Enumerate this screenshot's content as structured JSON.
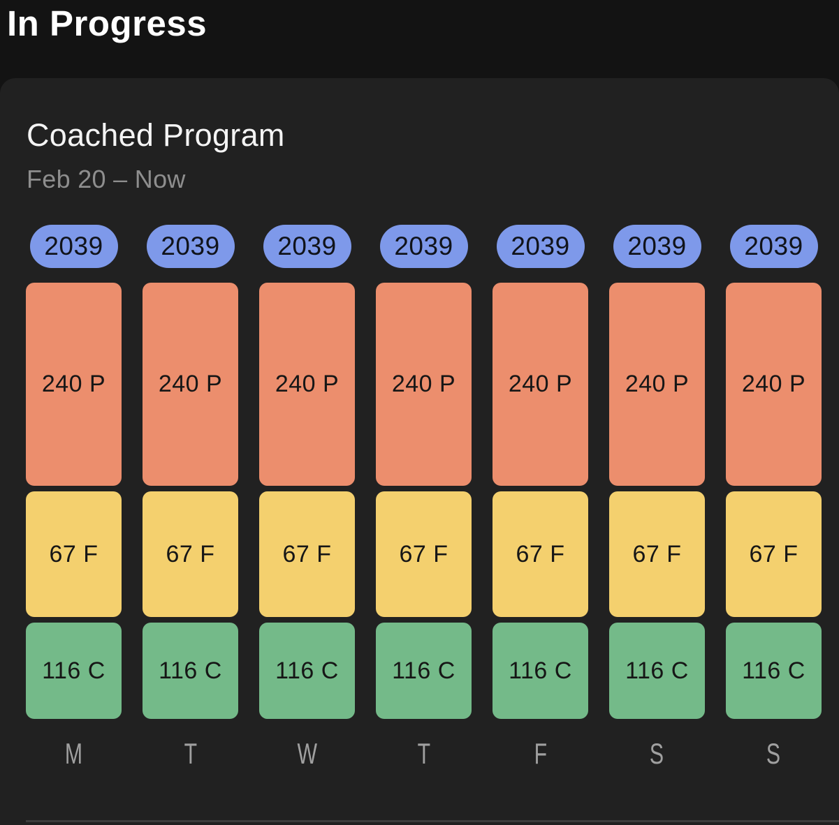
{
  "page": {
    "title": "In Progress",
    "background_color": "#131313"
  },
  "card": {
    "title": "Coached Program",
    "date_range": "Feb 20 – Now",
    "background_color": "#212121"
  },
  "colors": {
    "calories_badge": "#7e99ea",
    "protein_block": "#ec8e6d",
    "fat_block": "#f4d06e",
    "carb_block": "#74ba89",
    "divider": "#3d3d3d",
    "day_label": "#a0a0a0"
  },
  "chart_data": {
    "type": "bar",
    "title": "Coached Program",
    "subtitle": "Feb 20 – Now",
    "description": "Stacked daily macro target columns; one column per weekday, calorie total badge above each stack",
    "legend_position": "none",
    "grid": false,
    "categories": [
      "M",
      "T",
      "W",
      "T",
      "F",
      "S",
      "S"
    ],
    "series": [
      {
        "name": "Calories (kcal)",
        "color": "#7e99ea",
        "values": [
          2039,
          2039,
          2039,
          2039,
          2039,
          2039,
          2039
        ]
      },
      {
        "name": "Protein (g)",
        "color": "#ec8e6d",
        "values": [
          240,
          240,
          240,
          240,
          240,
          240,
          240
        ]
      },
      {
        "name": "Fat (g)",
        "color": "#f4d06e",
        "values": [
          67,
          67,
          67,
          67,
          67,
          67,
          67
        ]
      },
      {
        "name": "Carbs (g)",
        "color": "#74ba89",
        "values": [
          116,
          116,
          116,
          116,
          116,
          116,
          116
        ]
      }
    ],
    "days": [
      {
        "day": "M",
        "calories": "2039",
        "protein": "240 P",
        "fat": "67 F",
        "carbs": "116 C"
      },
      {
        "day": "T",
        "calories": "2039",
        "protein": "240 P",
        "fat": "67 F",
        "carbs": "116 C"
      },
      {
        "day": "W",
        "calories": "2039",
        "protein": "240 P",
        "fat": "67 F",
        "carbs": "116 C"
      },
      {
        "day": "T",
        "calories": "2039",
        "protein": "240 P",
        "fat": "67 F",
        "carbs": "116 C"
      },
      {
        "day": "F",
        "calories": "2039",
        "protein": "240 P",
        "fat": "67 F",
        "carbs": "116 C"
      },
      {
        "day": "S",
        "calories": "2039",
        "protein": "240 P",
        "fat": "67 F",
        "carbs": "116 C"
      },
      {
        "day": "S",
        "calories": "2039",
        "protein": "240 P",
        "fat": "67 F",
        "carbs": "116 C"
      }
    ]
  }
}
